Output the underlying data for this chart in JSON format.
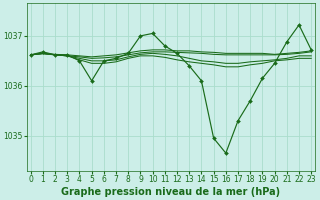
{
  "title": "Graphe pression niveau de la mer (hPa)",
  "bg_color": "#cceee8",
  "grid_color": "#aaddcc",
  "line_color": "#1a6b1a",
  "x_ticks": [
    0,
    1,
    2,
    3,
    4,
    5,
    6,
    7,
    8,
    9,
    10,
    11,
    12,
    13,
    14,
    15,
    16,
    17,
    18,
    19,
    20,
    21,
    22,
    23
  ],
  "y_ticks": [
    1035,
    1036,
    1037
  ],
  "ylim": [
    1034.3,
    1037.65
  ],
  "xlim": [
    -0.3,
    23.3
  ],
  "tick_fontsize": 5.5,
  "label_fontsize": 7.0,
  "lines_with_markers": [
    [
      1036.62,
      1036.68,
      1036.62,
      1036.62,
      1036.5,
      1036.1,
      1036.5,
      1036.55,
      1036.65,
      1037.0,
      1037.05,
      1036.8,
      1036.65,
      1036.4,
      1036.1,
      1034.95,
      1034.65,
      1035.3,
      1035.7,
      1036.15,
      1036.45,
      1036.88,
      1037.22,
      1036.72
    ]
  ],
  "lines_no_markers": [
    [
      1036.62,
      1036.65,
      1036.63,
      1036.62,
      1036.6,
      1036.58,
      1036.6,
      1036.62,
      1036.66,
      1036.7,
      1036.72,
      1036.72,
      1036.7,
      1036.7,
      1036.68,
      1036.67,
      1036.65,
      1036.65,
      1036.65,
      1036.65,
      1036.63,
      1036.65,
      1036.67,
      1036.7
    ],
    [
      1036.62,
      1036.65,
      1036.62,
      1036.6,
      1036.58,
      1036.55,
      1036.56,
      1036.58,
      1036.62,
      1036.66,
      1036.68,
      1036.68,
      1036.67,
      1036.66,
      1036.65,
      1036.63,
      1036.62,
      1036.62,
      1036.62,
      1036.62,
      1036.62,
      1036.63,
      1036.65,
      1036.68
    ],
    [
      1036.62,
      1036.65,
      1036.62,
      1036.6,
      1036.55,
      1036.5,
      1036.5,
      1036.52,
      1036.58,
      1036.63,
      1036.65,
      1036.63,
      1036.6,
      1036.55,
      1036.5,
      1036.48,
      1036.45,
      1036.45,
      1036.48,
      1036.5,
      1036.52,
      1036.55,
      1036.6,
      1036.6
    ],
    [
      1036.62,
      1036.64,
      1036.62,
      1036.6,
      1036.52,
      1036.45,
      1036.45,
      1036.48,
      1036.55,
      1036.6,
      1036.6,
      1036.57,
      1036.52,
      1036.48,
      1036.45,
      1036.42,
      1036.38,
      1036.38,
      1036.42,
      1036.45,
      1036.5,
      1036.52,
      1036.55,
      1036.55
    ]
  ]
}
